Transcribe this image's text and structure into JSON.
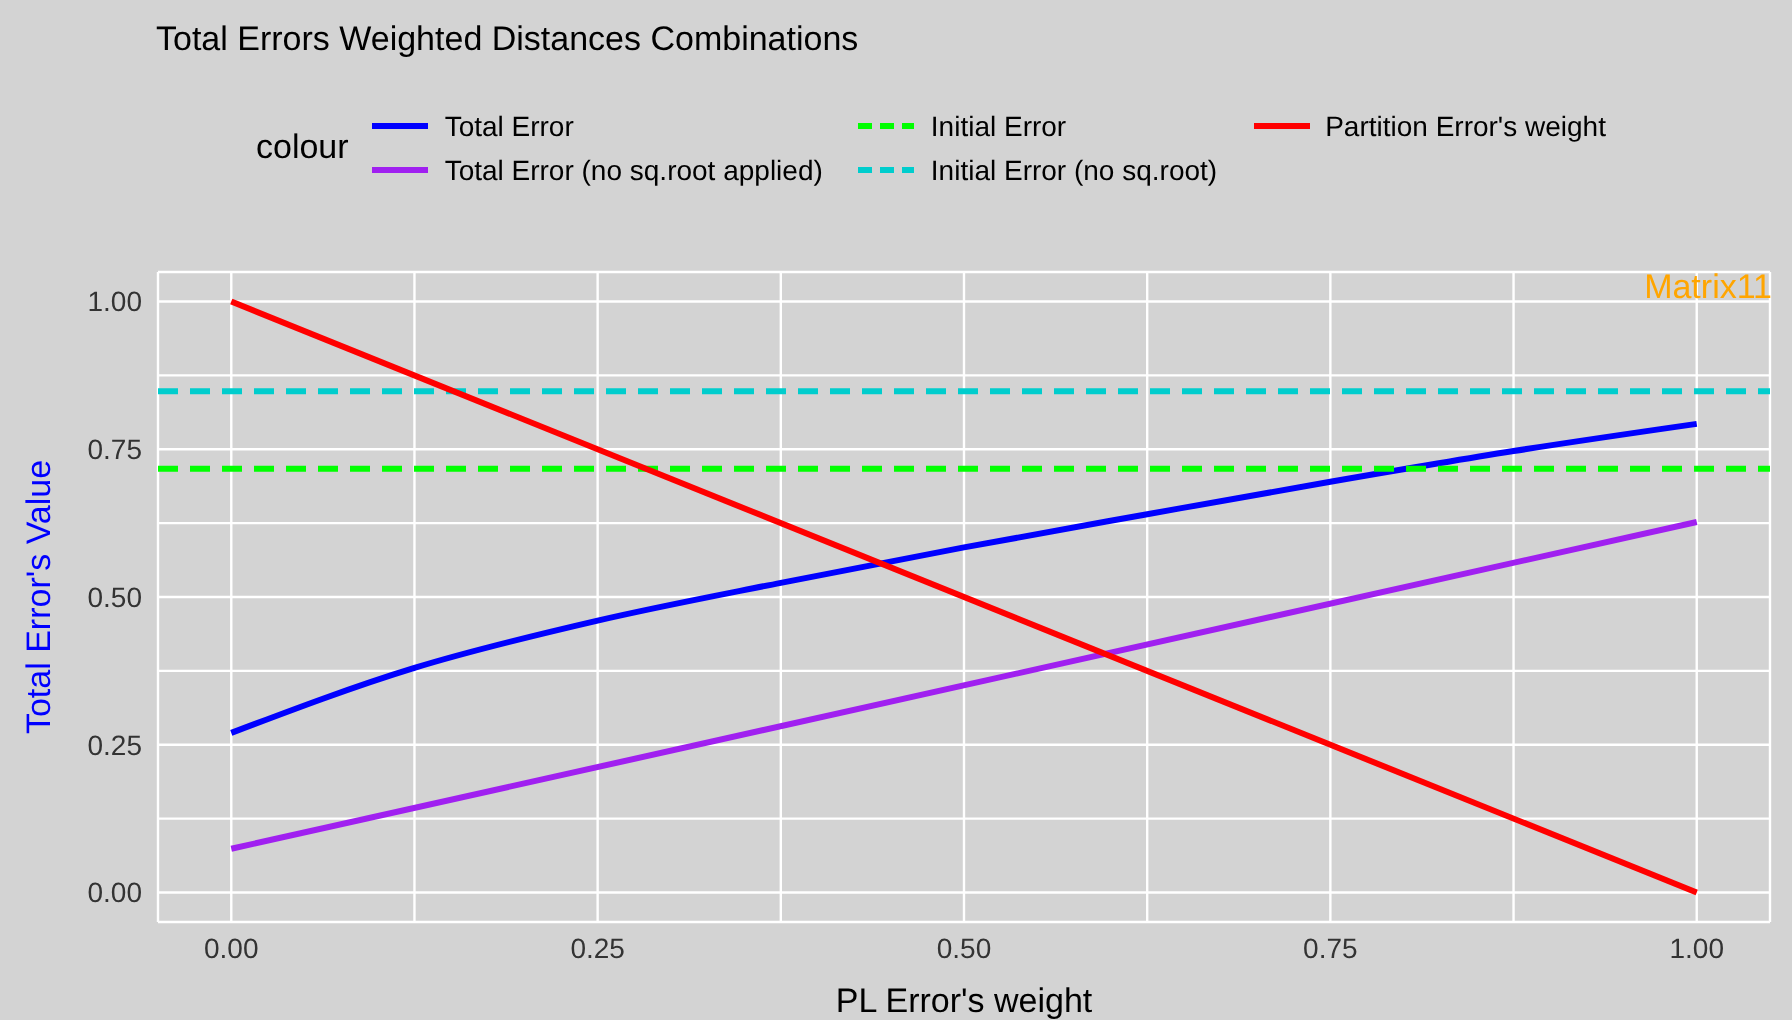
{
  "chart_data": {
    "type": "line",
    "title": "Total Errors Weighted Distances Combinations",
    "xlabel": "PL Error's weight",
    "ylabel": "Total Error's Value",
    "legend_title": "colour",
    "annotations": [
      "Matrix11"
    ],
    "series": [
      {
        "name": "Total Error",
        "color": "#0000ff",
        "x": [
          0,
          0.125,
          0.25,
          0.375,
          0.5,
          0.625,
          0.75,
          0.875,
          1
        ],
        "values": [
          0.27,
          0.38,
          0.46,
          0.524,
          0.584,
          0.64,
          0.695,
          0.747,
          0.793
        ]
      },
      {
        "name": "Total Error (no sq.root applied)",
        "color": "#a020f0",
        "x": [
          0,
          1
        ],
        "values": [
          0.074,
          0.627
        ]
      },
      {
        "name": "Initial Error",
        "color": "#00ff00",
        "line_style": "dashed",
        "x": [
          -0.05,
          1.05
        ],
        "values": [
          0.717,
          0.717
        ]
      },
      {
        "name": "Initial Error (no sq.root)",
        "color": "#00cdcd",
        "line_style": "dashed",
        "x": [
          -0.05,
          1.05
        ],
        "values": [
          0.848,
          0.848
        ]
      },
      {
        "name": "Partition Error's weight",
        "color": "#ff0000",
        "x": [
          0,
          1
        ],
        "values": [
          1,
          0
        ]
      }
    ],
    "xlim": [
      -0.05,
      1.05
    ],
    "ylim": [
      -0.05,
      1.05
    ],
    "xticks": [
      {
        "value": 0,
        "label": "0.00"
      },
      {
        "value": 0.125,
        "label": null
      },
      {
        "value": 0.25,
        "label": "0.25"
      },
      {
        "value": 0.375,
        "label": null
      },
      {
        "value": 0.5,
        "label": "0.50"
      },
      {
        "value": 0.625,
        "label": null
      },
      {
        "value": 0.75,
        "label": "0.75"
      },
      {
        "value": 0.875,
        "label": null
      },
      {
        "value": 1,
        "label": "1.00"
      }
    ],
    "yticks": [
      {
        "value": 0,
        "label": "0.00"
      },
      {
        "value": 0.125,
        "label": null
      },
      {
        "value": 0.25,
        "label": "0.25"
      },
      {
        "value": 0.375,
        "label": null
      },
      {
        "value": 0.5,
        "label": "0.50"
      },
      {
        "value": 0.625,
        "label": null
      },
      {
        "value": 0.75,
        "label": "0.75"
      },
      {
        "value": 0.875,
        "label": null
      },
      {
        "value": 1,
        "label": "1.00"
      }
    ],
    "grid": true,
    "legend": "top",
    "marker": "none"
  }
}
